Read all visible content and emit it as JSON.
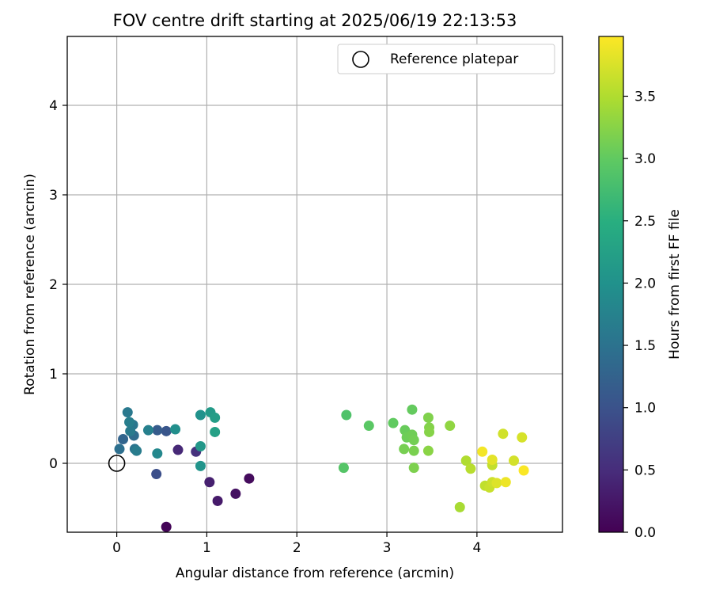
{
  "chart_data": {
    "type": "scatter",
    "title": "FOV centre drift starting at 2025/06/19 22:13:53",
    "xlabel": "Angular distance from reference (arcmin)",
    "ylabel": "Rotation from reference (arcmin)",
    "xlim": [
      -0.55,
      4.95
    ],
    "ylim": [
      -0.77,
      4.77
    ],
    "xticks": [
      0,
      1,
      2,
      3,
      4
    ],
    "yticks": [
      0,
      1,
      2,
      3,
      4
    ],
    "grid": true,
    "legend": {
      "placement": "top-right",
      "entries": [
        "Reference platepar"
      ]
    },
    "colorbar": {
      "label": "Hours from first FF file",
      "colormap": "viridis",
      "range": [
        0.0,
        3.98
      ],
      "ticks": [
        0.0,
        0.5,
        1.0,
        1.5,
        2.0,
        2.5,
        3.0,
        3.5
      ],
      "tick_labels": [
        "0.0",
        "0.5",
        "1.0",
        "1.5",
        "2.0",
        "2.5",
        "3.0",
        "3.5"
      ]
    },
    "reference_point": {
      "name": "Reference platepar",
      "x": 0,
      "y": 0
    },
    "series": [
      {
        "points": [
          {
            "x": 0.55,
            "y": -0.71,
            "h": 0.05
          },
          {
            "x": 1.47,
            "y": -0.17,
            "h": 0.12
          },
          {
            "x": 1.32,
            "y": -0.34,
            "h": 0.18
          },
          {
            "x": 1.12,
            "y": -0.42,
            "h": 0.28
          },
          {
            "x": 1.03,
            "y": -0.21,
            "h": 0.35
          },
          {
            "x": 0.68,
            "y": 0.15,
            "h": 0.45
          },
          {
            "x": 0.88,
            "y": 0.13,
            "h": 0.55
          },
          {
            "x": 0.44,
            "y": -0.12,
            "h": 0.95
          },
          {
            "x": 0.55,
            "y": 0.36,
            "h": 1.05
          },
          {
            "x": 0.45,
            "y": 0.37,
            "h": 1.15
          },
          {
            "x": 0.07,
            "y": 0.27,
            "h": 1.28
          },
          {
            "x": 0.19,
            "y": 0.31,
            "h": 1.38
          },
          {
            "x": 0.03,
            "y": 0.16,
            "h": 1.45
          },
          {
            "x": 0.2,
            "y": 0.16,
            "h": 1.52
          },
          {
            "x": 0.18,
            "y": 0.43,
            "h": 1.55
          },
          {
            "x": 0.12,
            "y": 0.57,
            "h": 1.6
          },
          {
            "x": 0.15,
            "y": 0.36,
            "h": 1.62
          },
          {
            "x": 0.22,
            "y": 0.14,
            "h": 1.65
          },
          {
            "x": 0.14,
            "y": 0.46,
            "h": 1.68
          },
          {
            "x": 0.35,
            "y": 0.37,
            "h": 1.72
          },
          {
            "x": 0.45,
            "y": 0.11,
            "h": 1.85
          },
          {
            "x": 0.65,
            "y": 0.38,
            "h": 1.95
          },
          {
            "x": 0.93,
            "y": 0.54,
            "h": 2.0
          },
          {
            "x": 0.93,
            "y": -0.03,
            "h": 2.05
          },
          {
            "x": 0.93,
            "y": 0.19,
            "h": 2.1
          },
          {
            "x": 1.04,
            "y": 0.57,
            "h": 2.15
          },
          {
            "x": 1.09,
            "y": 0.51,
            "h": 2.2
          },
          {
            "x": 1.09,
            "y": 0.35,
            "h": 2.25
          },
          {
            "x": 2.55,
            "y": 0.54,
            "h": 2.85
          },
          {
            "x": 2.52,
            "y": -0.05,
            "h": 2.9
          },
          {
            "x": 2.8,
            "y": 0.42,
            "h": 2.95
          },
          {
            "x": 3.07,
            "y": 0.45,
            "h": 3.0
          },
          {
            "x": 3.28,
            "y": 0.6,
            "h": 3.02
          },
          {
            "x": 3.2,
            "y": 0.37,
            "h": 3.05
          },
          {
            "x": 3.22,
            "y": 0.29,
            "h": 3.08
          },
          {
            "x": 3.28,
            "y": 0.32,
            "h": 3.1
          },
          {
            "x": 3.3,
            "y": 0.26,
            "h": 3.12
          },
          {
            "x": 3.19,
            "y": 0.16,
            "h": 3.14
          },
          {
            "x": 3.3,
            "y": 0.14,
            "h": 3.16
          },
          {
            "x": 3.3,
            "y": -0.05,
            "h": 3.18
          },
          {
            "x": 3.46,
            "y": 0.51,
            "h": 3.2
          },
          {
            "x": 3.47,
            "y": 0.4,
            "h": 3.22
          },
          {
            "x": 3.47,
            "y": 0.35,
            "h": 3.24
          },
          {
            "x": 3.46,
            "y": 0.14,
            "h": 3.26
          },
          {
            "x": 3.7,
            "y": 0.42,
            "h": 3.3
          },
          {
            "x": 3.81,
            "y": -0.49,
            "h": 3.45
          },
          {
            "x": 3.88,
            "y": 0.03,
            "h": 3.5
          },
          {
            "x": 3.93,
            "y": -0.06,
            "h": 3.55
          },
          {
            "x": 4.09,
            "y": -0.25,
            "h": 3.6
          },
          {
            "x": 4.17,
            "y": -0.02,
            "h": 3.62
          },
          {
            "x": 4.14,
            "y": -0.27,
            "h": 3.65
          },
          {
            "x": 4.17,
            "y": -0.21,
            "h": 3.68
          },
          {
            "x": 4.29,
            "y": 0.33,
            "h": 3.7
          },
          {
            "x": 4.41,
            "y": 0.03,
            "h": 3.72
          },
          {
            "x": 4.5,
            "y": 0.29,
            "h": 3.74
          },
          {
            "x": 4.22,
            "y": -0.22,
            "h": 3.78
          },
          {
            "x": 4.17,
            "y": 0.04,
            "h": 3.82
          },
          {
            "x": 4.32,
            "y": -0.21,
            "h": 3.88
          },
          {
            "x": 4.06,
            "y": 0.13,
            "h": 3.92
          },
          {
            "x": 4.52,
            "y": -0.08,
            "h": 3.96
          }
        ]
      }
    ]
  }
}
